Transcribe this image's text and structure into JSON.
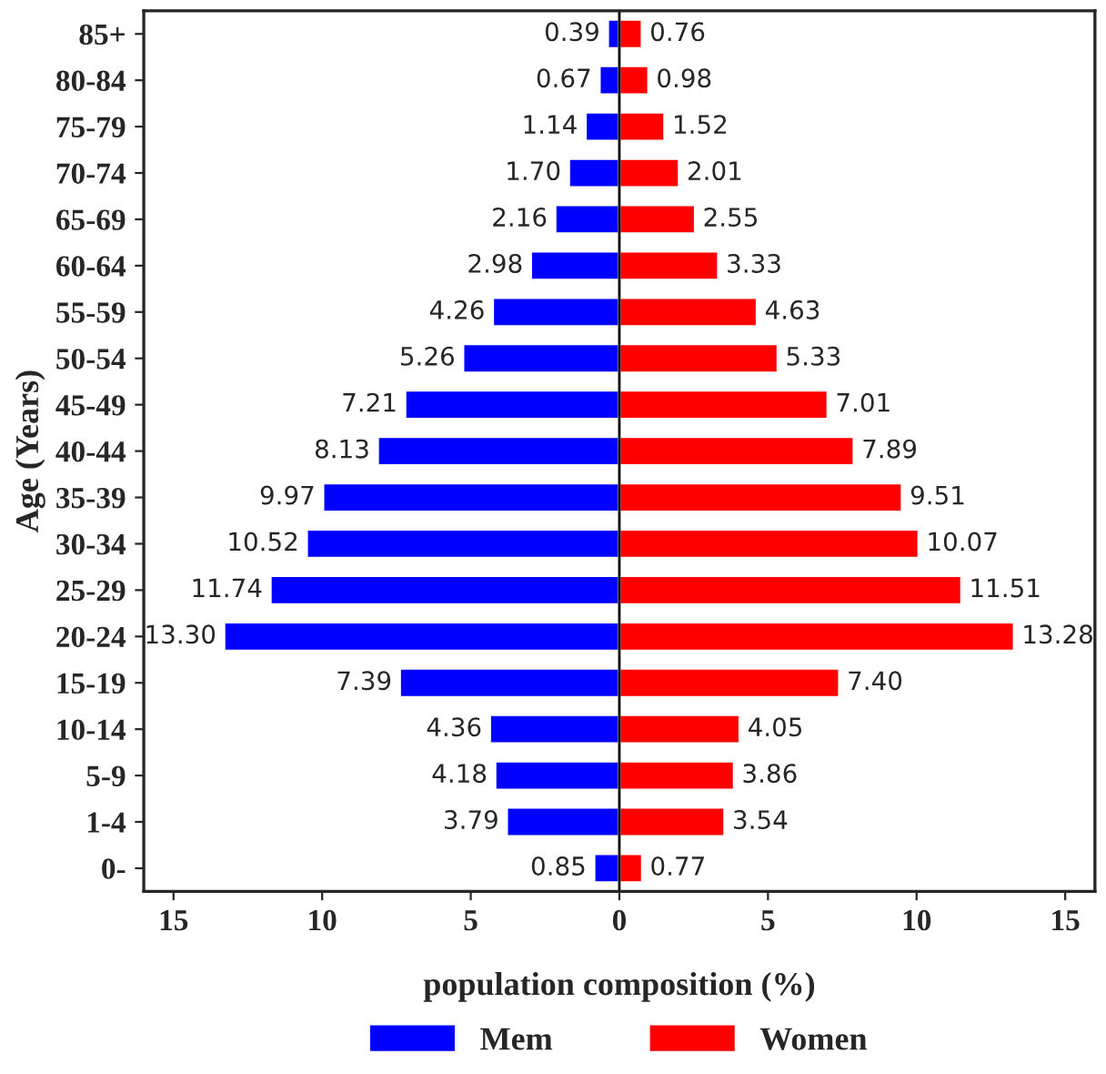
{
  "chart_data": {
    "type": "bar",
    "orientation": "horizontal",
    "xlabel": "population composition (%)",
    "ylabel": "Age (Years)",
    "categories": [
      "85+",
      "80-84",
      "75-79",
      "70-74",
      "65-69",
      "60-64",
      "55-59",
      "50-54",
      "45-49",
      "40-44",
      "35-39",
      "30-34",
      "25-29",
      "20-24",
      "15-19",
      "10-14",
      "5-9",
      "1-4",
      "0-"
    ],
    "series": [
      {
        "name": "Mem",
        "color": "#0000ff",
        "values": [
          0.39,
          0.67,
          1.14,
          1.7,
          2.16,
          2.98,
          4.26,
          5.26,
          7.21,
          8.13,
          9.97,
          10.52,
          11.74,
          13.3,
          7.39,
          4.36,
          4.18,
          3.79,
          0.85
        ],
        "base": [
          -0.39,
          -0.67,
          -1.14,
          -1.7,
          -2.16,
          -2.98,
          -4.26,
          -5.26,
          -7.21,
          -8.13,
          -9.97,
          -10.52,
          -11.74,
          -13.3,
          -7.39,
          -4.36,
          -4.18,
          -3.79,
          -0.85
        ],
        "value_labels": [
          "0.39",
          "0.67",
          "1.14",
          "1.70",
          "2.16",
          "2.98",
          "4.26",
          "5.26",
          "7.21",
          "8.13",
          "9.97",
          "10.52",
          "11.74",
          "13.30",
          "7.39",
          "4.36",
          "4.18",
          "3.79",
          "0.85"
        ]
      },
      {
        "name": "Women",
        "color": "#ff0000",
        "values": [
          0.76,
          0.98,
          1.52,
          2.01,
          2.55,
          3.33,
          4.63,
          5.33,
          7.01,
          7.89,
          9.51,
          10.07,
          11.51,
          13.28,
          7.4,
          4.05,
          3.86,
          3.54,
          0.77
        ],
        "value_labels": [
          "0.76",
          "0.98",
          "1.52",
          "2.01",
          "2.55",
          "3.33",
          "4.63",
          "5.33",
          "7.01",
          "7.89",
          "9.51",
          "10.07",
          "11.51",
          "13.28",
          "7.40",
          "4.05",
          "3.86",
          "3.54",
          "0.77"
        ]
      }
    ],
    "xlim": [
      -16,
      16
    ],
    "xticks": [
      {
        "value": -15,
        "label": "15"
      },
      {
        "value": -10,
        "label": "10"
      },
      {
        "value": -5,
        "label": "5"
      },
      0,
      5,
      10,
      15
    ],
    "ref_lines": [
      {
        "axis": "x",
        "value": 0,
        "color": "#000000"
      }
    ],
    "grid": false,
    "legend": "bottom"
  }
}
